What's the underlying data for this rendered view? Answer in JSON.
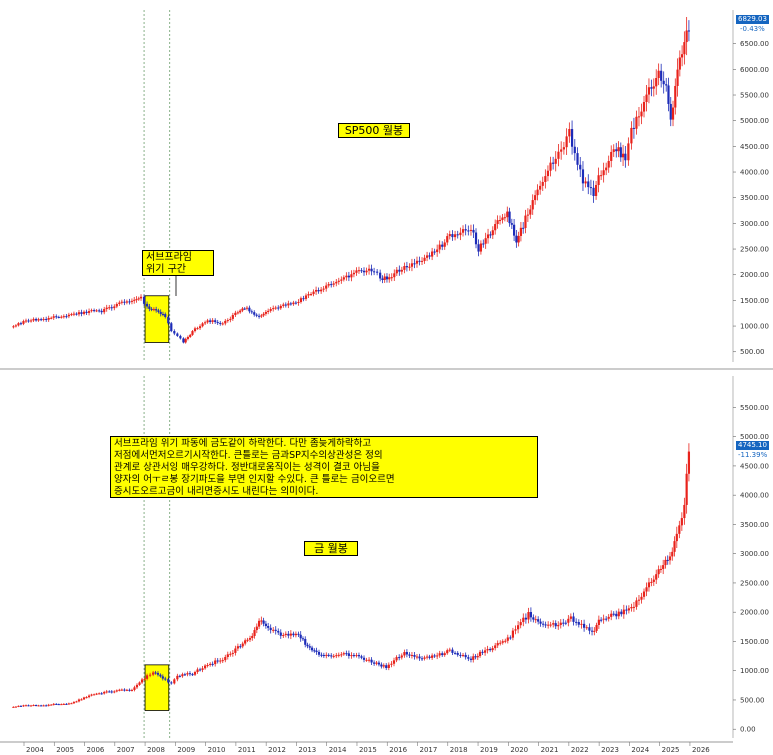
{
  "chart_data": [
    {
      "type": "candlestick",
      "title": "SP500 월봉",
      "y_ticks": [
        500,
        1000,
        1500,
        2000,
        2500,
        3000,
        3500,
        4000,
        4500,
        5000,
        5500,
        6000,
        6500
      ],
      "ylim": [
        300,
        7000
      ],
      "last_price": "6829.03",
      "change_pct": "-0.43%",
      "x": [
        2003.5,
        2004.0,
        2004.5,
        2005.0,
        2005.5,
        2006.0,
        2006.5,
        2007.0,
        2007.5,
        2007.8,
        2008.0,
        2008.3,
        2008.6,
        2008.8,
        2009.0,
        2009.2,
        2009.5,
        2010.0,
        2010.5,
        2011.0,
        2011.3,
        2011.7,
        2012.0,
        2012.5,
        2013.0,
        2013.5,
        2014.0,
        2014.5,
        2015.0,
        2015.5,
        2015.7,
        2016.0,
        2016.5,
        2017.0,
        2017.5,
        2018.0,
        2018.7,
        2018.95,
        2019.5,
        2019.9,
        2020.2,
        2020.5,
        2020.9,
        2021.5,
        2021.95,
        2022.4,
        2022.75,
        2023.0,
        2023.5,
        2023.8,
        2024.0,
        2024.5,
        2024.9,
        2025.15,
        2025.3,
        2025.6,
        2025.9
      ],
      "values": [
        980,
        1110,
        1120,
        1180,
        1220,
        1280,
        1290,
        1420,
        1510,
        1550,
        1380,
        1300,
        1200,
        900,
        825,
        680,
        900,
        1110,
        1050,
        1280,
        1350,
        1160,
        1300,
        1400,
        1500,
        1650,
        1800,
        1950,
        2060,
        2080,
        1920,
        1940,
        2170,
        2260,
        2450,
        2750,
        2910,
        2500,
        2940,
        3230,
        2600,
        3100,
        3650,
        4300,
        4770,
        3800,
        3600,
        4000,
        4450,
        4200,
        4770,
        5450,
        5900,
        5600,
        5100,
        6200,
        6750
      ],
      "events": [
        {
          "label": "서브프라임\n위기 구간",
          "x_range": [
            2007.9,
            2008.75
          ]
        }
      ]
    },
    {
      "type": "candlestick",
      "title": "금 월봉",
      "y_ticks": [
        0,
        500,
        1000,
        1500,
        2000,
        2500,
        3000,
        3500,
        4000,
        4500,
        5000,
        5500
      ],
      "ylim": [
        -150,
        5900
      ],
      "last_price": "4745.10",
      "change_pct": "-11.39%",
      "x": [
        2003.5,
        2004.0,
        2004.5,
        2005.0,
        2005.5,
        2006.0,
        2006.5,
        2007.0,
        2007.5,
        2008.0,
        2008.2,
        2008.6,
        2008.8,
        2009.0,
        2009.5,
        2010.0,
        2010.5,
        2011.0,
        2011.4,
        2011.7,
        2012.0,
        2012.5,
        2013.0,
        2013.3,
        2013.6,
        2014.0,
        2014.5,
        2015.0,
        2015.5,
        2015.9,
        2016.5,
        2017.0,
        2017.5,
        2018.0,
        2018.7,
        2019.0,
        2019.5,
        2020.0,
        2020.6,
        2021.0,
        2021.5,
        2022.0,
        2022.7,
        2023.0,
        2023.5,
        2024.0,
        2024.5,
        2024.9,
        2025.2,
        2025.5,
        2025.75,
        2025.9
      ],
      "values": [
        380,
        410,
        400,
        430,
        440,
        560,
        620,
        660,
        680,
        920,
        980,
        850,
        780,
        920,
        950,
        1100,
        1200,
        1400,
        1550,
        1850,
        1720,
        1600,
        1650,
        1400,
        1300,
        1250,
        1300,
        1230,
        1130,
        1060,
        1320,
        1210,
        1250,
        1340,
        1200,
        1300,
        1410,
        1600,
        1970,
        1800,
        1780,
        1900,
        1650,
        1900,
        1950,
        2050,
        2400,
        2700,
        2900,
        3300,
        3800,
        4745
      ],
      "events": [
        {
          "label": "서브프라임 위기 구간",
          "x_range": [
            2007.9,
            2008.75
          ]
        }
      ]
    }
  ],
  "x_axis": {
    "year_labels": [
      "2004",
      "2005",
      "2006",
      "2007",
      "2008",
      "2009",
      "2010",
      "2011",
      "2012",
      "2013",
      "2014",
      "2015",
      "2016",
      "2017",
      "2018",
      "2019",
      "2020",
      "2021",
      "2022",
      "2023",
      "2024",
      "2025",
      "2026"
    ]
  },
  "notes": {
    "subprime": "서브프라임\n위기 구간",
    "commentary": "서브프라임 위기 파동에 금도같이 하락한다. 다만  좀늦게하락하고\n저점에서먼저오르기시작한다. 큰틀로는 금과SP지수의상관성은 정의\n관계로 상관서잉 매우강하다. 정반대로움직이는 성격이 결코 아님을\n양자의 어ㅜㄹ봉 장기파도을 부면 인지할 수있다. 큰 틀로는 금이오르면\n증시도오르고금이 내리면증시도 내린다는 의미이다.",
    "sp_title": "SP500 월봉",
    "gold_title": "금 월봉"
  },
  "colors": {
    "up": "#e8221b",
    "down": "#1c2bb8",
    "note_bg": "#ffff00",
    "price_tag": "#1565c0",
    "grid": "#555555"
  }
}
